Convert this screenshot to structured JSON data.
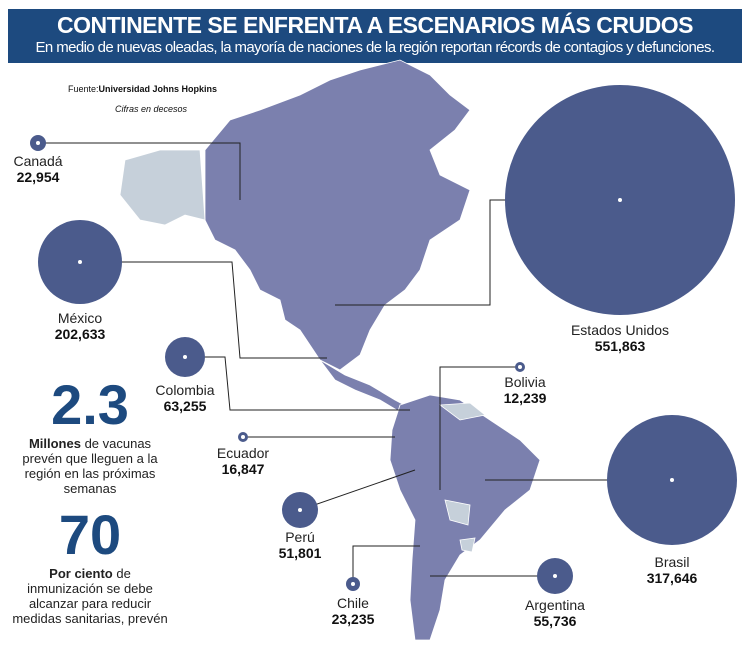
{
  "header": {
    "title": "CONTINENTE SE ENFRENTA A ESCENARIOS MÁS CRUDOS",
    "subtitle": "En medio de nuevas oleadas, la mayoría de naciones de la región reportan récords de contagios y defunciones."
  },
  "source": {
    "prefix": "Fuente:",
    "name": "Universidad Johns Hopkins",
    "note": "Cifras en decesos"
  },
  "colors": {
    "header": "#1d4a7f",
    "bubble": "#4b5b8c",
    "map": "#7b80ae",
    "map_other": "#c6d0da"
  },
  "countries": [
    {
      "name": "Canadá",
      "value": "22,954"
    },
    {
      "name": "México",
      "value": "202,633"
    },
    {
      "name": "Estados Unidos",
      "value": "551,863"
    },
    {
      "name": "Colombia",
      "value": "63,255"
    },
    {
      "name": "Bolivia",
      "value": "12,239"
    },
    {
      "name": "Ecuador",
      "value": "16,847"
    },
    {
      "name": "Perú",
      "value": "51,801"
    },
    {
      "name": "Brasil",
      "value": "317,646"
    },
    {
      "name": "Chile",
      "value": "23,235"
    },
    {
      "name": "Argentina",
      "value": "55,736"
    }
  ],
  "stats": [
    {
      "number": "2.3",
      "bold": "Millones",
      "text": " de vacunas prevén que lleguen a la región en las próximas semanas"
    },
    {
      "number": "70",
      "bold": "Por ciento",
      "text": " de inmunización se debe alcanzar para reducir medidas sanitarias, prevén"
    }
  ]
}
